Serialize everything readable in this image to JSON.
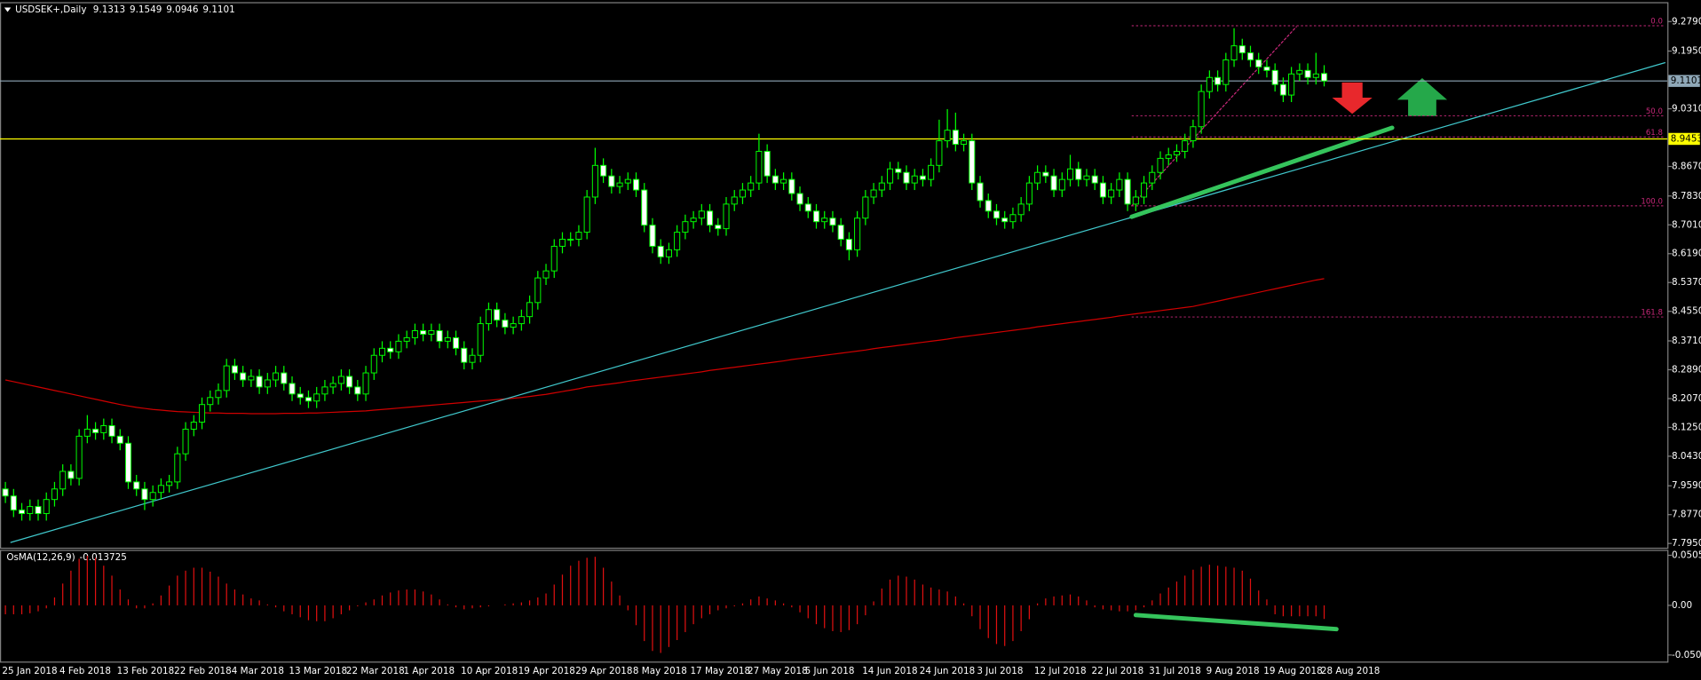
{
  "chart_data": {
    "type": "candlestick",
    "title": "USDSEK+,Daily",
    "header_values": [
      9.1313,
      9.1549,
      9.0946,
      9.1101
    ],
    "categories": [
      "25 Jan 2018",
      null,
      null,
      null,
      null,
      null,
      null,
      "4 Feb 2018",
      null,
      null,
      null,
      null,
      null,
      null,
      "13 Feb 2018",
      null,
      null,
      null,
      null,
      null,
      null,
      "22 Feb 2018",
      null,
      null,
      null,
      null,
      null,
      null,
      "4 Mar 2018",
      null,
      null,
      null,
      null,
      null,
      null,
      "13 Mar 2018",
      null,
      null,
      null,
      null,
      null,
      null,
      "22 Mar 2018",
      null,
      null,
      null,
      null,
      null,
      null,
      "1 Apr 2018",
      null,
      null,
      null,
      null,
      null,
      null,
      "10 Apr 2018",
      null,
      null,
      null,
      null,
      null,
      null,
      "19 Apr 2018",
      null,
      null,
      null,
      null,
      null,
      null,
      "29 Apr 2018",
      null,
      null,
      null,
      null,
      null,
      null,
      "8 May 2018",
      null,
      null,
      null,
      null,
      null,
      null,
      "17 May 2018",
      null,
      null,
      null,
      null,
      null,
      null,
      "27 May 2018",
      null,
      null,
      null,
      null,
      null,
      null,
      "5 Jun 2018",
      null,
      null,
      null,
      null,
      null,
      null,
      "14 Jun 2018",
      null,
      null,
      null,
      null,
      null,
      null,
      "24 Jun 2018",
      null,
      null,
      null,
      null,
      null,
      null,
      "3 Jul 2018",
      null,
      null,
      null,
      null,
      null,
      null,
      "12 Jul 2018",
      null,
      null,
      null,
      null,
      null,
      null,
      "22 Jul 2018",
      null,
      null,
      null,
      null,
      null,
      null,
      "31 Jul 2018",
      null,
      null,
      null,
      null,
      null,
      null,
      "9 Aug 2018",
      null,
      null,
      null,
      null,
      null,
      null,
      "19 Aug 2018",
      null,
      null,
      null,
      null,
      null,
      null,
      "28 Aug 2018"
    ],
    "open": [
      7.95,
      7.93,
      7.89,
      7.88,
      7.9,
      7.88,
      7.92,
      7.95,
      8.0,
      7.98,
      8.1,
      8.12,
      8.11,
      8.13,
      8.1,
      8.08,
      7.97,
      7.95,
      7.92,
      7.94,
      7.96,
      7.97,
      8.05,
      8.12,
      8.14,
      8.19,
      8.21,
      8.23,
      8.3,
      8.28,
      8.26,
      8.27,
      8.24,
      8.26,
      8.28,
      8.25,
      8.22,
      8.21,
      8.2,
      8.22,
      8.24,
      8.25,
      8.27,
      8.24,
      8.22,
      8.28,
      8.33,
      8.35,
      8.34,
      8.37,
      8.38,
      8.4,
      8.39,
      8.4,
      8.37,
      8.38,
      8.35,
      8.31,
      8.33,
      8.42,
      8.46,
      8.43,
      8.41,
      8.42,
      8.44,
      8.48,
      8.55,
      8.57,
      8.64,
      8.66,
      8.66,
      8.68,
      8.78,
      8.87,
      8.84,
      8.81,
      8.82,
      8.83,
      8.8,
      8.7,
      8.64,
      8.61,
      8.63,
      8.68,
      8.71,
      8.72,
      8.74,
      8.7,
      8.69,
      8.76,
      8.78,
      8.8,
      8.82,
      8.91,
      8.84,
      8.82,
      8.83,
      8.79,
      8.76,
      8.74,
      8.71,
      8.72,
      8.7,
      8.66,
      8.63,
      8.72,
      8.78,
      8.8,
      8.82,
      8.86,
      8.85,
      8.82,
      8.84,
      8.83,
      8.87,
      8.94,
      8.97,
      8.93,
      8.94,
      8.82,
      8.77,
      8.74,
      8.72,
      8.71,
      8.73,
      8.76,
      8.82,
      8.85,
      8.84,
      8.8,
      8.83,
      8.86,
      8.83,
      8.84,
      8.82,
      8.78,
      8.8,
      8.83,
      8.76,
      8.78,
      8.82,
      8.85,
      8.89,
      8.9,
      8.91,
      8.94,
      8.98,
      9.08,
      9.12,
      9.1,
      9.17,
      9.21,
      9.19,
      9.17,
      9.15,
      9.14,
      9.1,
      9.07,
      9.13,
      9.14,
      9.12,
      9.1313
    ],
    "high": [
      7.97,
      7.95,
      7.91,
      7.92,
      7.92,
      7.94,
      7.97,
      8.02,
      8.02,
      8.12,
      8.16,
      8.14,
      8.15,
      8.15,
      8.12,
      8.1,
      7.99,
      7.97,
      7.96,
      7.98,
      7.99,
      8.07,
      8.14,
      8.16,
      8.21,
      8.23,
      8.25,
      8.32,
      8.32,
      8.3,
      8.29,
      8.29,
      8.28,
      8.3,
      8.3,
      8.27,
      8.24,
      8.23,
      8.24,
      8.26,
      8.27,
      8.29,
      8.29,
      8.26,
      8.3,
      8.35,
      8.37,
      8.37,
      8.39,
      8.4,
      8.42,
      8.42,
      8.42,
      8.42,
      8.4,
      8.4,
      8.37,
      8.35,
      8.44,
      8.48,
      8.48,
      8.45,
      8.44,
      8.46,
      8.5,
      8.57,
      8.59,
      8.66,
      8.68,
      8.68,
      8.7,
      8.8,
      8.92,
      8.89,
      8.86,
      8.84,
      8.85,
      8.85,
      8.82,
      8.72,
      8.66,
      8.65,
      8.7,
      8.73,
      8.74,
      8.76,
      8.76,
      8.72,
      8.78,
      8.8,
      8.82,
      8.84,
      8.96,
      8.93,
      8.86,
      8.85,
      8.85,
      8.81,
      8.78,
      8.76,
      8.74,
      8.74,
      8.72,
      8.68,
      8.74,
      8.8,
      8.82,
      8.84,
      8.88,
      8.88,
      8.87,
      8.86,
      8.86,
      8.89,
      9.0,
      9.03,
      9.02,
      8.96,
      8.96,
      8.84,
      8.79,
      8.76,
      8.74,
      8.75,
      8.78,
      8.84,
      8.87,
      8.87,
      8.86,
      8.85,
      8.9,
      8.88,
      8.86,
      8.86,
      8.84,
      8.82,
      8.85,
      8.85,
      8.8,
      8.84,
      8.87,
      8.91,
      8.92,
      8.93,
      8.96,
      9.0,
      9.1,
      9.14,
      9.14,
      9.19,
      9.26,
      9.23,
      9.21,
      9.19,
      9.17,
      9.16,
      9.12,
      9.15,
      9.16,
      9.16,
      9.19,
      9.1549
    ],
    "low": [
      7.91,
      7.87,
      7.86,
      7.86,
      7.86,
      7.86,
      7.9,
      7.93,
      7.96,
      7.96,
      8.08,
      8.09,
      8.09,
      8.08,
      8.06,
      7.95,
      7.93,
      7.89,
      7.9,
      7.92,
      7.94,
      7.95,
      8.03,
      8.1,
      8.12,
      8.17,
      8.19,
      8.21,
      8.26,
      8.24,
      8.24,
      8.22,
      8.22,
      8.24,
      8.23,
      8.2,
      8.19,
      8.18,
      8.18,
      8.2,
      8.22,
      8.23,
      8.22,
      8.2,
      8.2,
      8.26,
      8.31,
      8.32,
      8.32,
      8.35,
      8.36,
      8.37,
      8.37,
      8.35,
      8.35,
      8.33,
      8.29,
      8.29,
      8.31,
      8.4,
      8.41,
      8.39,
      8.39,
      8.4,
      8.42,
      8.46,
      8.53,
      8.55,
      8.62,
      8.64,
      8.64,
      8.66,
      8.76,
      8.82,
      8.79,
      8.79,
      8.8,
      8.78,
      8.68,
      8.62,
      8.59,
      8.59,
      8.61,
      8.66,
      8.69,
      8.7,
      8.68,
      8.67,
      8.67,
      8.74,
      8.76,
      8.78,
      8.8,
      8.82,
      8.8,
      8.8,
      8.77,
      8.74,
      8.72,
      8.69,
      8.69,
      8.68,
      8.64,
      8.6,
      8.61,
      8.7,
      8.76,
      8.78,
      8.8,
      8.83,
      8.8,
      8.8,
      8.81,
      8.81,
      8.85,
      8.92,
      8.91,
      8.91,
      8.8,
      8.75,
      8.72,
      8.7,
      8.69,
      8.69,
      8.71,
      8.74,
      8.8,
      8.82,
      8.78,
      8.78,
      8.81,
      8.81,
      8.81,
      8.8,
      8.76,
      8.76,
      8.78,
      8.74,
      8.74,
      8.76,
      8.8,
      8.83,
      8.87,
      8.88,
      8.89,
      8.92,
      8.96,
      9.06,
      9.08,
      9.08,
      9.15,
      9.17,
      9.15,
      9.13,
      9.12,
      9.08,
      9.05,
      9.05,
      9.11,
      9.1,
      9.1,
      9.0946
    ],
    "close": [
      7.93,
      7.89,
      7.88,
      7.9,
      7.88,
      7.92,
      7.95,
      8.0,
      7.98,
      8.1,
      8.12,
      8.11,
      8.13,
      8.1,
      8.08,
      7.97,
      7.95,
      7.92,
      7.94,
      7.96,
      7.97,
      8.05,
      8.12,
      8.14,
      8.19,
      8.21,
      8.23,
      8.3,
      8.28,
      8.26,
      8.27,
      8.24,
      8.26,
      8.28,
      8.25,
      8.22,
      8.21,
      8.2,
      8.22,
      8.24,
      8.25,
      8.27,
      8.24,
      8.22,
      8.28,
      8.33,
      8.35,
      8.34,
      8.37,
      8.38,
      8.4,
      8.39,
      8.4,
      8.37,
      8.38,
      8.35,
      8.31,
      8.33,
      8.42,
      8.46,
      8.43,
      8.41,
      8.42,
      8.44,
      8.48,
      8.55,
      8.57,
      8.64,
      8.66,
      8.66,
      8.68,
      8.78,
      8.87,
      8.84,
      8.81,
      8.82,
      8.83,
      8.8,
      8.7,
      8.64,
      8.61,
      8.63,
      8.68,
      8.71,
      8.72,
      8.74,
      8.7,
      8.69,
      8.76,
      8.78,
      8.8,
      8.82,
      8.91,
      8.84,
      8.82,
      8.83,
      8.79,
      8.76,
      8.74,
      8.71,
      8.72,
      8.7,
      8.66,
      8.63,
      8.72,
      8.78,
      8.8,
      8.82,
      8.86,
      8.85,
      8.82,
      8.84,
      8.83,
      8.87,
      8.94,
      8.97,
      8.93,
      8.94,
      8.82,
      8.77,
      8.74,
      8.72,
      8.71,
      8.73,
      8.76,
      8.82,
      8.85,
      8.84,
      8.8,
      8.83,
      8.86,
      8.83,
      8.84,
      8.82,
      8.78,
      8.8,
      8.83,
      8.76,
      8.78,
      8.82,
      8.85,
      8.89,
      8.9,
      8.91,
      8.94,
      8.98,
      9.08,
      9.12,
      9.1,
      9.17,
      9.21,
      9.19,
      9.17,
      9.15,
      9.14,
      9.1,
      9.07,
      9.13,
      9.14,
      9.12,
      9.13,
      9.1101
    ],
    "candle_colors": {
      "wick": "#00ff00",
      "up": "#000000",
      "down": "#ffffff"
    },
    "ma": {
      "color": "#d00000",
      "values": [
        8.26,
        8.255,
        8.25,
        8.245,
        8.24,
        8.235,
        8.23,
        8.225,
        8.22,
        8.215,
        8.21,
        8.205,
        8.2,
        8.195,
        8.19,
        8.186,
        8.182,
        8.179,
        8.176,
        8.174,
        8.172,
        8.17,
        8.169,
        8.168,
        8.167,
        8.166,
        8.166,
        8.165,
        8.165,
        8.165,
        8.164,
        8.164,
        8.164,
        8.164,
        8.165,
        8.165,
        8.165,
        8.166,
        8.166,
        8.167,
        8.168,
        8.169,
        8.17,
        8.171,
        8.172,
        8.174,
        8.176,
        8.178,
        8.18,
        8.182,
        8.184,
        8.186,
        8.188,
        8.19,
        8.192,
        8.194,
        8.196,
        8.198,
        8.2,
        8.202,
        8.204,
        8.206,
        8.208,
        8.21,
        8.213,
        8.216,
        8.219,
        8.223,
        8.227,
        8.231,
        8.235,
        8.24,
        8.243,
        8.246,
        8.249,
        8.252,
        8.256,
        8.259,
        8.262,
        8.265,
        8.268,
        8.271,
        8.274,
        8.277,
        8.28,
        8.283,
        8.287,
        8.29,
        8.293,
        8.296,
        8.299,
        8.302,
        8.305,
        8.308,
        8.311,
        8.314,
        8.318,
        8.321,
        8.324,
        8.327,
        8.33,
        8.333,
        8.336,
        8.339,
        8.342,
        8.345,
        8.349,
        8.352,
        8.355,
        8.358,
        8.361,
        8.364,
        8.367,
        8.37,
        8.373,
        8.376,
        8.38,
        8.383,
        8.386,
        8.389,
        8.392,
        8.395,
        8.398,
        8.401,
        8.404,
        8.407,
        8.411,
        8.414,
        8.417,
        8.42,
        8.423,
        8.426,
        8.429,
        8.432,
        8.435,
        8.438,
        8.442,
        8.445,
        8.448,
        8.451,
        8.454,
        8.457,
        8.46,
        8.463,
        8.466,
        8.469,
        8.474,
        8.479,
        8.484,
        8.489,
        8.494,
        8.499,
        8.504,
        8.509,
        8.514,
        8.519,
        8.524,
        8.529,
        8.534,
        8.539,
        8.544,
        8.548
      ]
    },
    "xlim": [
      -0.66,
      202.9
    ],
    "ylim": [
      7.783,
      9.331
    ],
    "yticks": [
      {
        "value": 9.279,
        "label": "9.2790"
      },
      {
        "value": 9.195,
        "label": "9.1950"
      },
      {
        "value": 9.031,
        "label": "9.0310"
      },
      {
        "value": 8.867,
        "label": "8.8670"
      },
      {
        "value": 8.783,
        "label": "8.7830"
      },
      {
        "value": 8.701,
        "label": "8.7010"
      },
      {
        "value": 8.619,
        "label": "8.6190"
      },
      {
        "value": 8.537,
        "label": "8.5370"
      },
      {
        "value": 8.455,
        "label": "8.4550"
      },
      {
        "value": 8.371,
        "label": "8.3710"
      },
      {
        "value": 8.289,
        "label": "8.2890"
      },
      {
        "value": 8.207,
        "label": "8.2070"
      },
      {
        "value": 8.125,
        "label": "8.1250"
      },
      {
        "value": 8.043,
        "label": "8.0430"
      },
      {
        "value": 7.959,
        "label": "7.9590"
      },
      {
        "value": 7.877,
        "label": "7.8770"
      },
      {
        "value": 7.795,
        "label": "7.7950"
      }
    ],
    "price_lines": [
      {
        "value": 9.1101,
        "color": "#8fa8b8"
      },
      {
        "value": 8.9453,
        "color": "#ffff00"
      }
    ],
    "fibonacci": {
      "color": "#c8287a",
      "x": [
        137.5,
        202.6
      ],
      "levels": [
        {
          "label": "0.0",
          "value": 9.267
        },
        {
          "label": "50.0",
          "value": 9.011
        },
        {
          "label": "61.8",
          "value": 8.951
        },
        {
          "label": "100.0",
          "value": 8.755
        },
        {
          "label": "161.8",
          "value": 8.439
        }
      ]
    },
    "trendlines": [
      {
        "color": "#40c8cc",
        "width": 1,
        "dashed": false,
        "x": [
          0.66,
          202.6
        ],
        "y": [
          7.798,
          9.162
        ]
      },
      {
        "color": "#c8287a",
        "width": 1,
        "dashed": true,
        "x": [
          137.5,
          157.6
        ],
        "y": [
          8.755,
          9.264
        ]
      },
      {
        "color": "#35c45c",
        "width": 4,
        "dashed": false,
        "x": [
          137.5,
          169.3
        ],
        "y": [
          8.724,
          8.977
        ]
      }
    ],
    "oscillator": {
      "title": "OsMA(12,26,9)",
      "value": -0.013725,
      "color": "#e01010",
      "ylim": [
        -0.0567,
        0.0549
      ],
      "yticks": [
        0.050526,
        {
          "value": 0,
          "label": "0.00"
        },
        {
          "value": -0.0501,
          "label": "-0.05010"
        }
      ],
      "values": [
        -0.009,
        -0.009,
        -0.009,
        -0.008,
        -0.006,
        -0.003,
        0.008,
        0.022,
        0.035,
        0.047,
        0.05,
        0.048,
        0.04,
        0.03,
        0.016,
        0.006,
        -0.003,
        -0.003,
        0.002,
        0.01,
        0.02,
        0.03,
        0.035,
        0.038,
        0.038,
        0.034,
        0.029,
        0.022,
        0.016,
        0.011,
        0.007,
        0.005,
        0.001,
        -0.002,
        -0.006,
        -0.009,
        -0.012,
        -0.015,
        -0.016,
        -0.016,
        -0.013,
        -0.009,
        -0.005,
        -0.001,
        0.003,
        0.006,
        0.01,
        0.013,
        0.015,
        0.016,
        0.016,
        0.014,
        0.011,
        0.006,
        0.001,
        -0.002,
        -0.004,
        -0.003,
        -0.002,
        -0.001,
        0,
        0.001,
        0.002,
        0.003,
        0.005,
        0.008,
        0.012,
        0.021,
        0.031,
        0.04,
        0.045,
        0.048,
        0.049,
        0.038,
        0.024,
        0.01,
        -0.005,
        -0.02,
        -0.036,
        -0.046,
        -0.048,
        -0.042,
        -0.035,
        -0.027,
        -0.019,
        -0.013,
        -0.009,
        -0.005,
        -0.003,
        -0.001,
        0.002,
        0.006,
        0.009,
        0.007,
        0.005,
        0.002,
        -0.002,
        -0.007,
        -0.013,
        -0.019,
        -0.023,
        -0.026,
        -0.027,
        -0.025,
        -0.019,
        -0.01,
        0.004,
        0.017,
        0.026,
        0.03,
        0.029,
        0.026,
        0.021,
        0.018,
        0.016,
        0.014,
        0.009,
        0.002,
        -0.011,
        -0.024,
        -0.033,
        -0.039,
        -0.041,
        -0.036,
        -0.026,
        -0.014,
        0.002,
        0.007,
        0.009,
        0.01,
        0.011,
        0.009,
        0.005,
        -0.002,
        -0.004,
        -0.005,
        -0.006,
        -0.006,
        -0.005,
        -0.002,
        0.005,
        0.012,
        0.018,
        0.024,
        0.03,
        0.036,
        0.039,
        0.041,
        0.04,
        0.039,
        0.038,
        0.035,
        0.027,
        0.015,
        0.006,
        -0.009,
        -0.011,
        -0.011,
        -0.011,
        -0.011,
        -0.011,
        -0.0137
      ],
      "trendline": {
        "color": "#35c45c",
        "width": 4,
        "x": [
          138,
          162.5
        ],
        "y": [
          -0.0098,
          -0.024
        ]
      }
    }
  }
}
